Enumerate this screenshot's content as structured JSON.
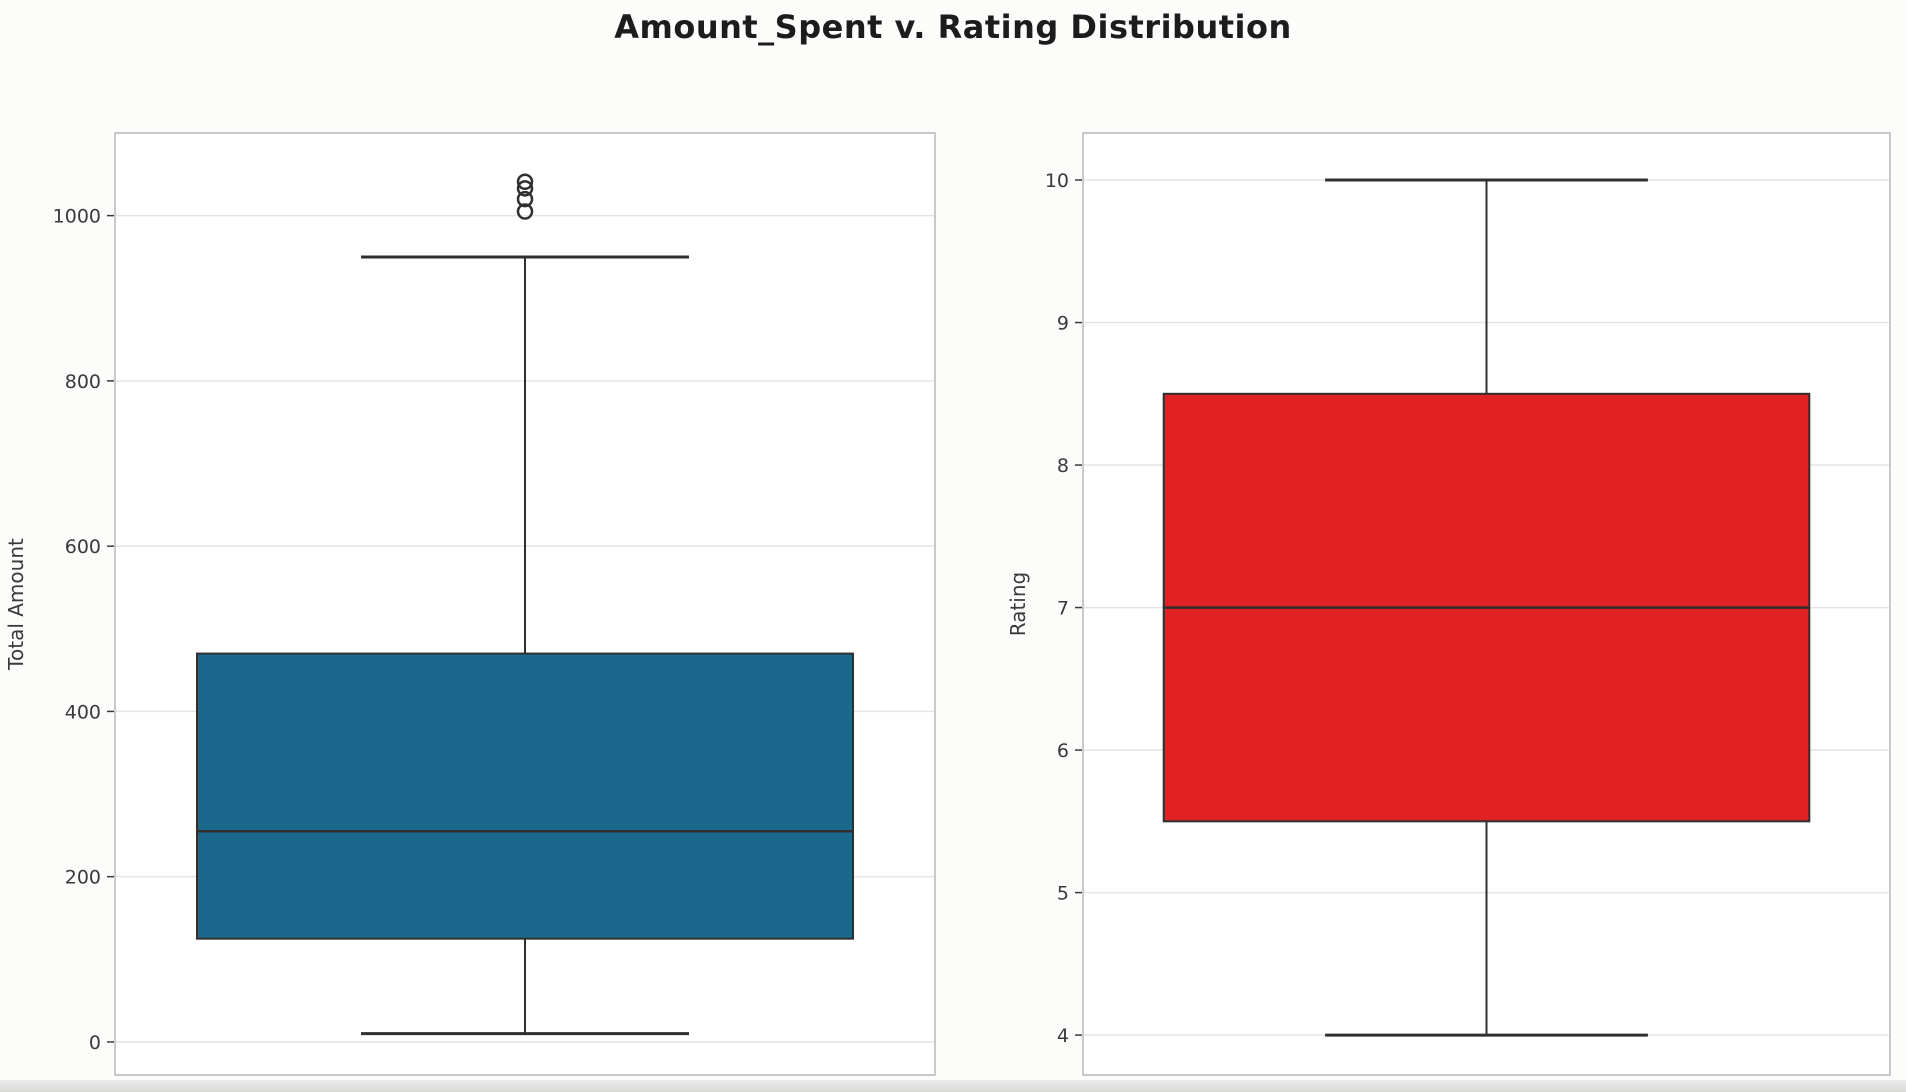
{
  "title": "Amount_Spent v. Rating Distribution",
  "styles": {
    "background": "#fcfcfb",
    "title_color": "#1c1c1c",
    "tick_color": "#3a3a3a",
    "grid_color": "#e4e4e4",
    "plot_border_color": "#c9c9c9",
    "line_color": "#2f2f2f",
    "bottom_strip_color": "#d8d8d6"
  },
  "chart_data": [
    {
      "type": "boxplot",
      "series_name": "Amount_Spent",
      "ylabel": "Total Amount",
      "ylim": [
        -40,
        1100
      ],
      "yticks": [
        0,
        200,
        400,
        600,
        800,
        1000
      ],
      "grid": true,
      "legend": "none",
      "box_color": "#1a698d",
      "stats": {
        "whisker_low": 10,
        "q1": 125,
        "median": 255,
        "q3": 470,
        "whisker_high": 950,
        "outliers": [
          1005,
          1020,
          1033,
          1041
        ]
      }
    },
    {
      "type": "boxplot",
      "series_name": "Rating",
      "ylabel": "Rating",
      "ylim": [
        3.72,
        10.33
      ],
      "yticks": [
        4,
        5,
        6,
        7,
        8,
        9,
        10
      ],
      "grid": true,
      "legend": "none",
      "box_color": "#e02224",
      "stats": {
        "whisker_low": 4,
        "q1": 5.5,
        "median": 7,
        "q3": 8.5,
        "whisker_high": 10,
        "outliers": []
      }
    }
  ]
}
